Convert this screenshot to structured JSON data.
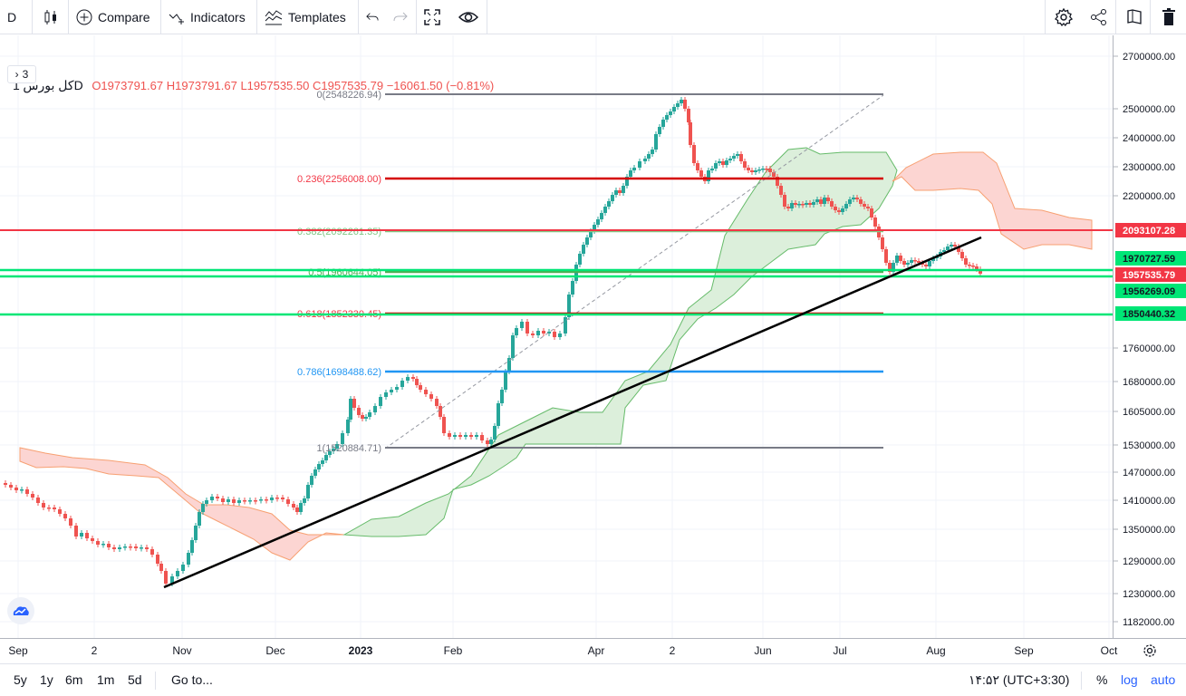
{
  "toolbar": {
    "symbol_short": "D",
    "compare_label": "Compare",
    "indicators_label": "Indicators",
    "templates_label": "Templates"
  },
  "legend": {
    "symbol": "کل بورس",
    "interval": "1D",
    "open": "O1973791.67",
    "high": "H1973791.67",
    "low": "L1957535.50",
    "close": "C1957535.79",
    "change": "−16061.50 (−0.81%)",
    "collapsed_count": "3"
  },
  "colors": {
    "up": "#26a69a",
    "down": "#ef5350",
    "cloud_up": "#c8e6c9",
    "cloud_down": "#fcd5d2"
  },
  "price_axis": {
    "ticks": [
      "2700000.00",
      "2500000.00",
      "2400000.00",
      "2300000.00",
      "2200000.00",
      "2093107.28",
      "1970727.59",
      "1957535.79",
      "1956269.09",
      "1850440.32",
      "1760000.00",
      "1680000.00",
      "1605000.00",
      "1530000.00",
      "1470000.00",
      "1410000.00",
      "1350000.00",
      "1290000.00",
      "1230000.00",
      "1182000.00"
    ],
    "badges": [
      {
        "value": "2093107.28",
        "color": "#f23645",
        "text_color": "#ffffff"
      },
      {
        "value": "1970727.59",
        "color": "#00e676",
        "text_color": "#131722"
      },
      {
        "value": "1957535.79",
        "color": "#f23645",
        "text_color": "#ffffff"
      },
      {
        "value": "1956269.09",
        "color": "#00e676",
        "text_color": "#131722"
      },
      {
        "value": "1850440.32",
        "color": "#00e676",
        "text_color": "#131722"
      }
    ]
  },
  "time_axis": [
    "Sep",
    "2",
    "Nov",
    "Dec",
    "2023",
    "Feb",
    "Apr",
    "2",
    "Jun",
    "Jul",
    "Aug",
    "Sep",
    "Oct"
  ],
  "fib_levels": [
    {
      "label": "0(2548226.94)",
      "color": "#787b86"
    },
    {
      "label": "0.236(2256008.00)",
      "color": "#f23645"
    },
    {
      "label": "0.382(2092261.35)",
      "color": "#81c784"
    },
    {
      "label": "0.5(1960644.05)",
      "color": "#4caf50"
    },
    {
      "label": "0.618(1852330.45)",
      "color": "#f23645"
    },
    {
      "label": "0.786(1698488.62)",
      "color": "#2196f3"
    },
    {
      "label": "1(1520884.71)",
      "color": "#787b86"
    }
  ],
  "bottom_bar": {
    "ranges": [
      "5y",
      "1y",
      "6m",
      "1m",
      "5d"
    ],
    "goto_label": "Go to...",
    "time": "۱۴:۵۲ (UTC+3:30)",
    "percent": "%",
    "log": "log",
    "auto": "auto"
  }
}
